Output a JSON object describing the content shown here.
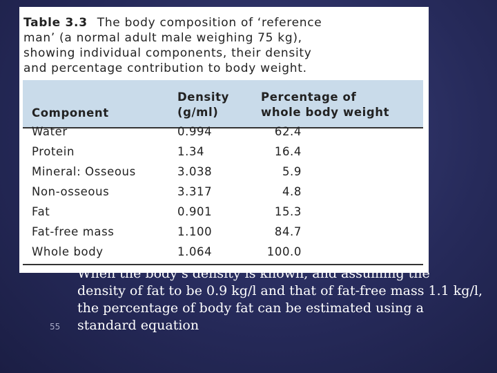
{
  "table": {
    "number": "Table 3.3",
    "title_lines": [
      "The body composition of ‘reference",
      "man’ (a normal adult male weighing 75 kg),",
      "showing individual components, their density",
      "and percentage contribution to body weight."
    ],
    "headers": {
      "component": "Component",
      "density": [
        "Density",
        "(g/ml)"
      ],
      "percentage": [
        "Percentage of",
        "whole body weight"
      ]
    },
    "rows": [
      {
        "component": "Water",
        "density": "0.994",
        "percentage": "62.4"
      },
      {
        "component": "Protein",
        "density": "1.34",
        "percentage": "16.4"
      },
      {
        "component": "Mineral: Osseous",
        "density": "3.038",
        "percentage": "5.9"
      },
      {
        "component": "Non-osseous",
        "density": "3.317",
        "percentage": "4.8"
      },
      {
        "component": "Fat",
        "density": "0.901",
        "percentage": "15.3"
      },
      {
        "component": "Fat-free mass",
        "density": "1.100",
        "percentage": "84.7"
      },
      {
        "component": "Whole body",
        "density": "1.064",
        "percentage": "100.0"
      }
    ]
  },
  "slide": {
    "number": "55",
    "body_lines": [
      "When the body’s density is known, and assuming the",
      "density of fat to be 0.9 kg/l and that of fat-free mass 1.1 kg/l,",
      "the percentage of body fat can be estimated using a",
      "standard equation"
    ]
  }
}
